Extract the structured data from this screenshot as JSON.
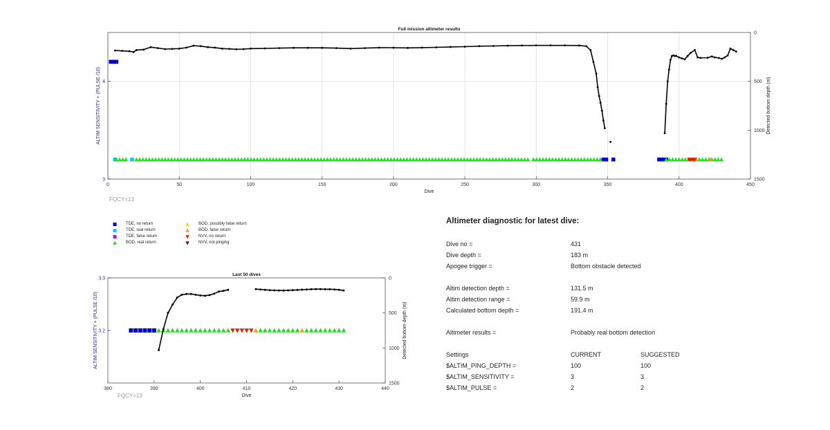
{
  "chart_data": [
    {
      "type": "scatter",
      "title": "Full mission altimeter results",
      "xlabel": "Dive",
      "ylabel": "ALTIM SENSITIVITY + (PULSE /10)",
      "y2label": "Detected bottom depth (m)",
      "xlim": [
        0,
        450
      ],
      "ylim": [
        3,
        4.5
      ],
      "y2lim": [
        0,
        1500
      ],
      "y2_reversed": true,
      "xticks": [
        "0",
        "50",
        "100",
        "150",
        "200",
        "250",
        "300",
        "350",
        "400",
        "450"
      ],
      "yticks": [
        "3",
        "4"
      ],
      "y2ticks": [
        "0",
        "500",
        "1000",
        "1500"
      ],
      "grid": true,
      "footnote": "FQCY=13",
      "depth_series": [
        {
          "x": [
            5,
            10,
            15,
            18,
            20,
            25,
            30,
            35,
            40,
            45,
            50,
            55,
            60,
            65,
            70,
            75,
            80,
            85,
            90,
            95,
            100,
            110,
            120,
            130,
            140,
            150,
            160,
            170,
            180,
            190,
            200,
            210,
            220,
            230,
            240,
            250,
            260,
            270,
            280,
            290,
            300,
            310,
            320,
            330,
            335,
            338,
            340,
            342,
            343,
            344,
            345,
            346,
            347,
            348
          ],
          "y": [
            185,
            188,
            192,
            200,
            180,
            175,
            150,
            160,
            170,
            168,
            165,
            155,
            135,
            140,
            150,
            155,
            165,
            168,
            172,
            170,
            165,
            163,
            160,
            157,
            157,
            157,
            160,
            165,
            160,
            155,
            156,
            158,
            155,
            152,
            148,
            145,
            140,
            138,
            135,
            133,
            132,
            132,
            132,
            133,
            140,
            180,
            300,
            420,
            560,
            650,
            720,
            800,
            900,
            980
          ]
        },
        {
          "x": [
            352
          ],
          "y": [
            1120
          ]
        },
        {
          "x": [
            390,
            391,
            392,
            393,
            394,
            395,
            396,
            397,
            398,
            400,
            402,
            404,
            406
          ],
          "y": [
            1030,
            730,
            500,
            380,
            280,
            240,
            235,
            240,
            240,
            255,
            265,
            275,
            240
          ]
        },
        {
          "x": [
            406,
            408,
            411,
            413,
            415,
            420,
            423,
            425,
            428,
            430,
            432,
            434,
            436,
            438,
            440
          ],
          "y": [
            240,
            210,
            180,
            255,
            260,
            258,
            245,
            255,
            262,
            270,
            255,
            235,
            165,
            180,
            195
          ]
        }
      ],
      "markers": {
        "tde_no_return": {
          "x": [
            2,
            3,
            4,
            5,
            6,
            347,
            348,
            349,
            354,
            386,
            387,
            388,
            389,
            390,
            391
          ],
          "y": [
            4.2,
            4.2,
            4.2,
            4.2,
            4.2,
            3.2,
            3.2,
            3.2,
            3.2,
            3.2,
            3.2,
            3.2,
            3.2,
            3.2,
            3.2
          ]
        },
        "tde_real_return": {
          "x": [
            5,
            17
          ],
          "y": [
            3.2,
            3.2
          ]
        },
        "tde_false_return": {
          "x": [],
          "y": []
        },
        "bod_real_return": {
          "ranges": [
            [
              6,
              14
            ],
            [
              20,
              296
            ],
            [
              298,
              346
            ],
            [
              391,
              407
            ],
            [
              412,
              422
            ],
            [
              423,
              431
            ]
          ],
          "y": 3.2
        },
        "bod_possibly_false_return": {
          "x": [],
          "y": []
        },
        "bod_false_return": {
          "x": [
            412,
            422
          ],
          "y": [
            3.2,
            3.2
          ]
        },
        "nvv_no_return": {
          "x": [
            407,
            408,
            409,
            410,
            411
          ],
          "y": [
            3.2,
            3.2,
            3.2,
            3.2,
            3.2
          ]
        },
        "nvv_not_pinging": {
          "x": [],
          "y": []
        }
      }
    },
    {
      "type": "scatter",
      "title": "Last 50 dives",
      "xlabel": "Dive",
      "ylabel": "ALTIM SENSITIVITY + (PULSE /10)",
      "y2label": "Detected bottom depth (m)",
      "xlim": [
        380,
        440
      ],
      "ylim": [
        3.1,
        3.3
      ],
      "y2lim": [
        0,
        1500
      ],
      "y2_reversed": true,
      "xticks": [
        "380",
        "390",
        "400",
        "410",
        "420",
        "430",
        "440"
      ],
      "yticks": [
        "3.2",
        "3.3"
      ],
      "y2ticks": [
        "0",
        "500",
        "1000",
        "1500"
      ],
      "grid": false,
      "footnote": "FQCY=13",
      "depth_series": [
        {
          "x": [
            391,
            392,
            393,
            394,
            395,
            396,
            397,
            398,
            399,
            400,
            401,
            402,
            403,
            404,
            405,
            406
          ],
          "y": [
            1030,
            730,
            500,
            380,
            280,
            240,
            230,
            230,
            240,
            250,
            255,
            245,
            225,
            195,
            185,
            170
          ]
        },
        {
          "x": [
            412,
            413,
            414,
            415,
            416,
            417,
            418,
            419,
            420,
            421,
            422,
            423,
            424,
            425,
            426,
            427,
            428,
            429,
            430,
            431
          ],
          "y": [
            160,
            165,
            170,
            175,
            178,
            180,
            180,
            178,
            175,
            172,
            168,
            165,
            162,
            160,
            160,
            162,
            162,
            165,
            170,
            180
          ]
        }
      ],
      "markers": {
        "tde_no_return": {
          "x": [
            385,
            386,
            387,
            388,
            389,
            390
          ],
          "y": [
            3.2,
            3.2,
            3.2,
            3.2,
            3.2,
            3.2
          ]
        },
        "bod_real_return": {
          "x": [
            391,
            392,
            393,
            394,
            395,
            396,
            397,
            398,
            399,
            400,
            401,
            402,
            403,
            404,
            405,
            406,
            413,
            414,
            415,
            416,
            417,
            418,
            419,
            420,
            421,
            423,
            424,
            425,
            426,
            427,
            428,
            429,
            430,
            431
          ],
          "y": 3.2
        },
        "bod_false_return": {
          "x": [
            412,
            422
          ],
          "y": [
            3.2,
            3.2
          ]
        },
        "nvv_no_return": {
          "x": [
            407,
            408,
            409,
            410,
            411
          ],
          "y": [
            3.2,
            3.2,
            3.2,
            3.2,
            3.2
          ]
        }
      }
    }
  ],
  "legend": [
    {
      "label": "TDE, no return",
      "marker": "square",
      "color": "#0000cc"
    },
    {
      "label": "TDE, real return",
      "marker": "square",
      "color": "#00ccff"
    },
    {
      "label": "TDE, false return",
      "marker": "square",
      "color": "#8a2be2"
    },
    {
      "label": "BOD, real return",
      "marker": "triangle-up",
      "color": "#22dd22"
    },
    {
      "label": "BOD, possibly false return",
      "marker": "triangle-up",
      "color": "#ffd700"
    },
    {
      "label": "BOD, false return",
      "marker": "triangle-up",
      "color": "#ff9900"
    },
    {
      "label": "NVV, no return",
      "marker": "triangle-down",
      "color": "#dd2200"
    },
    {
      "label": "NVV, not pinging",
      "marker": "triangle-down",
      "color": "#880000"
    }
  ],
  "colors": {
    "axis_left": "#2222bb",
    "depth_line": "#000000",
    "grid": "#e6e6e6",
    "footnote": "#999999"
  },
  "diagnostic": {
    "title": "Altimeter diagnostic for latest dive:",
    "rows": [
      {
        "label": "Dive no =",
        "value": "431"
      },
      {
        "label": "Dive depth =",
        "value": "183 m"
      },
      {
        "label": "Apogee trigger =",
        "value": "Bottom obstacle detected"
      },
      {
        "label": "Altim detection depth =",
        "value": "131.5 m"
      },
      {
        "label": "Altim detection range =",
        "value": "59.9 m"
      },
      {
        "label": "Calculated bottom depth =",
        "value": "191.4 m"
      },
      {
        "label": "Altimeter results =",
        "value": "Probably real bottom detection"
      }
    ],
    "settings_header": {
      "label": "Settings",
      "current": "CURRENT",
      "suggested": "SUGGESTED"
    },
    "settings": [
      {
        "label": "$ALTIM_PING_DEPTH =",
        "current": "100",
        "suggested": "100"
      },
      {
        "label": "$ALTIM_SENSITIVITY =",
        "current": "3",
        "suggested": "3"
      },
      {
        "label": "$ALTIM_PULSE =",
        "current": "2",
        "suggested": "2"
      }
    ]
  }
}
